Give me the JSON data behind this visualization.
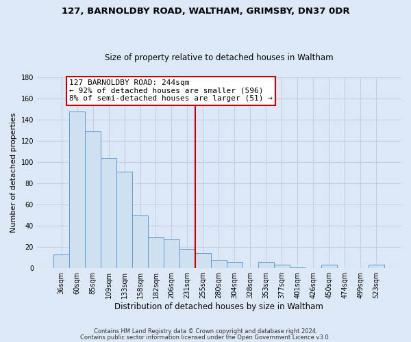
{
  "title": "127, BARNOLDBY ROAD, WALTHAM, GRIMSBY, DN37 0DR",
  "subtitle": "Size of property relative to detached houses in Waltham",
  "xlabel": "Distribution of detached houses by size in Waltham",
  "ylabel": "Number of detached properties",
  "bar_labels": [
    "36sqm",
    "60sqm",
    "85sqm",
    "109sqm",
    "133sqm",
    "158sqm",
    "182sqm",
    "206sqm",
    "231sqm",
    "255sqm",
    "280sqm",
    "304sqm",
    "328sqm",
    "353sqm",
    "377sqm",
    "401sqm",
    "426sqm",
    "450sqm",
    "474sqm",
    "499sqm",
    "523sqm"
  ],
  "bar_values": [
    13,
    148,
    129,
    104,
    91,
    50,
    29,
    27,
    18,
    14,
    8,
    6,
    0,
    6,
    3,
    1,
    0,
    3,
    0,
    0,
    3
  ],
  "bar_color": "#cfe0f0",
  "bar_edge_color": "#5b9bd5",
  "vline_color": "#cc0000",
  "vline_x": 8.5,
  "annotation_line1": "127 BARNOLDBY ROAD: 244sqm",
  "annotation_line2": "← 92% of detached houses are smaller (596)",
  "annotation_line3": "8% of semi-detached houses are larger (51) →",
  "annotation_box_color": "#ffffff",
  "annotation_box_edge": "#cc0000",
  "ylim": [
    0,
    180
  ],
  "yticks": [
    0,
    20,
    40,
    60,
    80,
    100,
    120,
    140,
    160,
    180
  ],
  "footer1": "Contains HM Land Registry data © Crown copyright and database right 2024.",
  "footer2": "Contains public sector information licensed under the Open Government Licence v3.0.",
  "bg_color": "#dce8f5",
  "plot_bg_color": "#dce8f5",
  "grid_color": "#c0d0e0",
  "title_fontsize": 9.5,
  "subtitle_fontsize": 8.5,
  "axis_label_fontsize": 8,
  "tick_fontsize": 7,
  "annotation_fontsize": 8
}
